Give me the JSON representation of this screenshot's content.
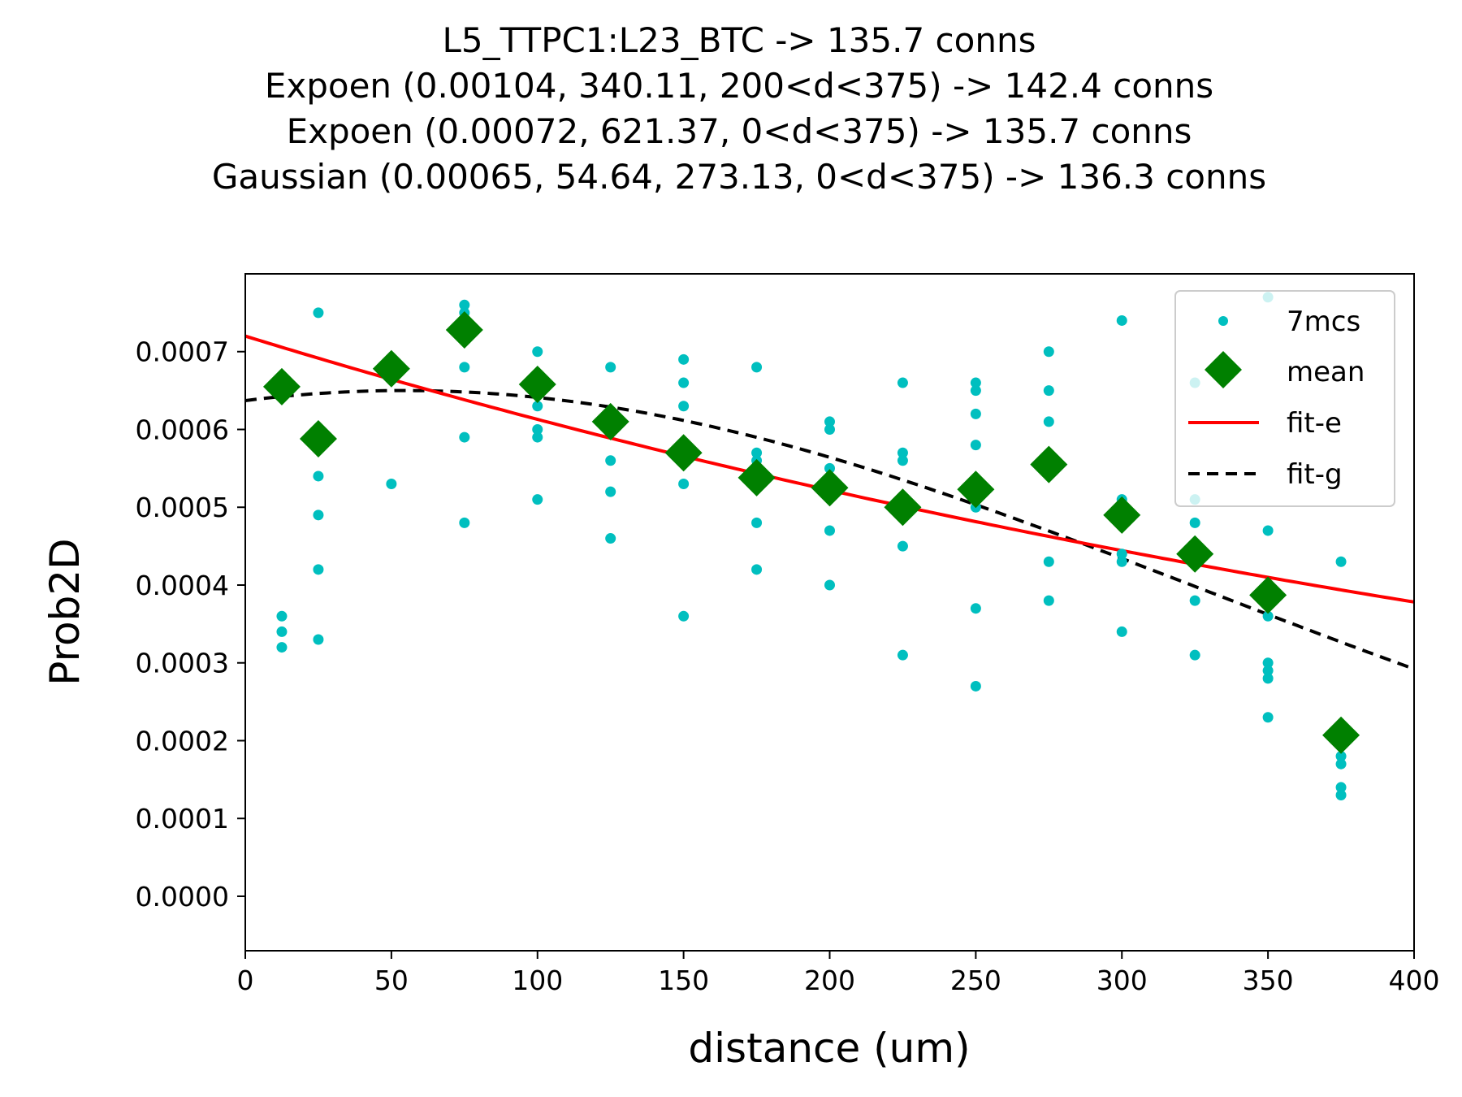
{
  "chart_data": {
    "type": "scatter",
    "title_lines": [
      "L5_TTPC1:L23_BTC -> 135.7 conns",
      "Expoen (0.00104, 340.11, 200<d<375) -> 142.4 conns",
      "Expoen (0.00072, 621.37, 0<d<375) -> 135.7 conns",
      "Gaussian (0.00065, 54.64, 273.13, 0<d<375) -> 136.3 conns"
    ],
    "xlabel": "distance (um)",
    "ylabel": "Prob2D",
    "xlim": [
      0,
      400
    ],
    "ylim": [
      -7e-05,
      0.0008
    ],
    "xticks": [
      0,
      50,
      100,
      150,
      200,
      250,
      300,
      350,
      400
    ],
    "xtick_labels": [
      "0",
      "50",
      "100",
      "150",
      "200",
      "250",
      "300",
      "350",
      "400"
    ],
    "yticks": [
      0,
      0.0001,
      0.0002,
      0.0003,
      0.0004,
      0.0005,
      0.0006,
      0.0007
    ],
    "ytick_labels": [
      "0.0000",
      "0.0001",
      "0.0002",
      "0.0003",
      "0.0004",
      "0.0005",
      "0.0006",
      "0.0007"
    ],
    "grid": false,
    "legend_position": "top-right",
    "series": [
      {
        "name": "7mcs",
        "kind": "scatter",
        "color": "#00bfbf",
        "points": [
          [
            12.5,
            0.00065
          ],
          [
            12.5,
            0.00036
          ],
          [
            12.5,
            0.00034
          ],
          [
            12.5,
            0.00032
          ],
          [
            25,
            0.00075
          ],
          [
            25,
            0.00054
          ],
          [
            25,
            0.00049
          ],
          [
            25,
            0.00042
          ],
          [
            25,
            0.00033
          ],
          [
            50,
            0.00068
          ],
          [
            50,
            0.00053
          ],
          [
            75,
            0.00076
          ],
          [
            75,
            0.00075
          ],
          [
            75,
            0.00068
          ],
          [
            75,
            0.00059
          ],
          [
            75,
            0.00048
          ],
          [
            100,
            0.0007
          ],
          [
            100,
            0.00063
          ],
          [
            100,
            0.0006
          ],
          [
            100,
            0.00059
          ],
          [
            100,
            0.00051
          ],
          [
            125,
            0.00068
          ],
          [
            125,
            0.00061
          ],
          [
            125,
            0.00056
          ],
          [
            125,
            0.00052
          ],
          [
            125,
            0.00046
          ],
          [
            150,
            0.00069
          ],
          [
            150,
            0.00066
          ],
          [
            150,
            0.00063
          ],
          [
            150,
            0.00053
          ],
          [
            150,
            0.00036
          ],
          [
            175,
            0.00068
          ],
          [
            175,
            0.00057
          ],
          [
            175,
            0.00056
          ],
          [
            175,
            0.00048
          ],
          [
            175,
            0.00042
          ],
          [
            200,
            0.00061
          ],
          [
            200,
            0.0006
          ],
          [
            200,
            0.00055
          ],
          [
            200,
            0.00047
          ],
          [
            200,
            0.0004
          ],
          [
            225,
            0.00066
          ],
          [
            225,
            0.00057
          ],
          [
            225,
            0.00056
          ],
          [
            225,
            0.00045
          ],
          [
            225,
            0.00031
          ],
          [
            250,
            0.00066
          ],
          [
            250,
            0.00065
          ],
          [
            250,
            0.00062
          ],
          [
            250,
            0.00058
          ],
          [
            250,
            0.0005
          ],
          [
            250,
            0.00037
          ],
          [
            250,
            0.00027
          ],
          [
            275,
            0.0007
          ],
          [
            275,
            0.00065
          ],
          [
            275,
            0.00061
          ],
          [
            275,
            0.00043
          ],
          [
            275,
            0.00038
          ],
          [
            300,
            0.00074
          ],
          [
            300,
            0.00051
          ],
          [
            300,
            0.00044
          ],
          [
            300,
            0.00043
          ],
          [
            300,
            0.00034
          ],
          [
            325,
            0.00066
          ],
          [
            325,
            0.00051
          ],
          [
            325,
            0.00048
          ],
          [
            325,
            0.00038
          ],
          [
            325,
            0.00031
          ],
          [
            350,
            0.00077
          ],
          [
            350,
            0.00047
          ],
          [
            350,
            0.00036
          ],
          [
            350,
            0.0003
          ],
          [
            350,
            0.00029
          ],
          [
            350,
            0.00028
          ],
          [
            350,
            0.00023
          ],
          [
            375,
            0.00043
          ],
          [
            375,
            0.00018
          ],
          [
            375,
            0.00017
          ],
          [
            375,
            0.00014
          ],
          [
            375,
            0.00013
          ]
        ]
      },
      {
        "name": "mean",
        "kind": "diamond",
        "color": "#008000",
        "points": [
          [
            12.5,
            0.000655
          ],
          [
            25,
            0.000588
          ],
          [
            50,
            0.000678
          ],
          [
            75,
            0.000728
          ],
          [
            100,
            0.000658
          ],
          [
            125,
            0.00061
          ],
          [
            150,
            0.00057
          ],
          [
            175,
            0.000538
          ],
          [
            200,
            0.000525
          ],
          [
            225,
            0.0005
          ],
          [
            250,
            0.000523
          ],
          [
            275,
            0.000555
          ],
          [
            300,
            0.00049
          ],
          [
            325,
            0.00044
          ],
          [
            350,
            0.000387
          ],
          [
            375,
            0.000207
          ]
        ]
      },
      {
        "name": "fit-e",
        "kind": "line",
        "color": "#ff0000",
        "function": "exponential",
        "params": [
          0.00072,
          621.37
        ]
      },
      {
        "name": "fit-g",
        "kind": "dashed-line",
        "color": "#000000",
        "function": "gaussian",
        "params": [
          0.00065,
          54.64,
          273.13
        ]
      }
    ]
  }
}
